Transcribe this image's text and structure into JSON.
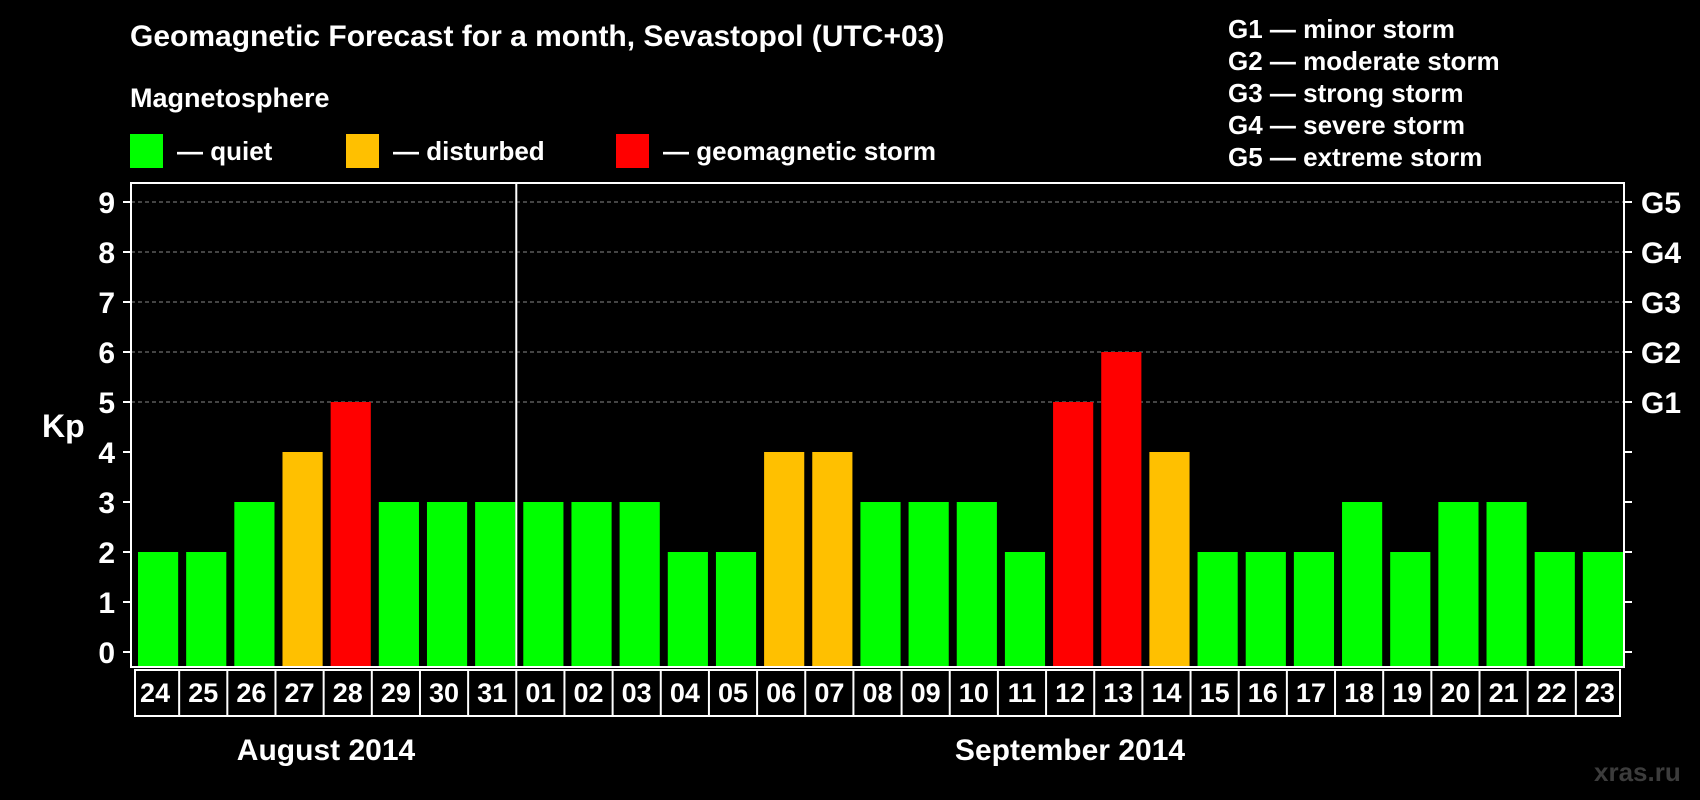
{
  "title": "Geomagnetic Forecast for a month, Sevastopol (UTC+03)",
  "subtitle": "Magnetosphere",
  "legend": [
    {
      "label": "— quiet",
      "color": "#00ff00"
    },
    {
      "label": "— disturbed",
      "color": "#ffc000"
    },
    {
      "label": "— geomagnetic storm",
      "color": "#ff0000"
    }
  ],
  "g_scale": [
    "G1 — minor storm",
    "G2 — moderate storm",
    "G3 — strong storm",
    "G4 — severe storm",
    "G5 — extreme storm"
  ],
  "ylabel": "Kp",
  "months": [
    "August 2014",
    "September 2014"
  ],
  "watermark": "xras.ru",
  "chart_data": {
    "type": "bar",
    "title": "Geomagnetic Forecast for a month, Sevastopol (UTC+03)",
    "ylabel": "Kp",
    "ylim": [
      0,
      9
    ],
    "yticks": [
      "0",
      "1",
      "2",
      "3",
      "4",
      "5",
      "6",
      "7",
      "8",
      "9"
    ],
    "right_ticks": [
      {
        "value": 5,
        "label": "G1"
      },
      {
        "value": 6,
        "label": "G2"
      },
      {
        "value": 7,
        "label": "G3"
      },
      {
        "value": 8,
        "label": "G4"
      },
      {
        "value": 9,
        "label": "G5"
      }
    ],
    "grid": "dashed horizontal at 5-9",
    "categories": [
      "24",
      "25",
      "26",
      "27",
      "28",
      "29",
      "30",
      "31",
      "01",
      "02",
      "03",
      "04",
      "05",
      "06",
      "07",
      "08",
      "09",
      "10",
      "11",
      "12",
      "13",
      "14",
      "15",
      "16",
      "17",
      "18",
      "19",
      "20",
      "21",
      "22",
      "23"
    ],
    "values": [
      2,
      2,
      3,
      4,
      5,
      3,
      3,
      3,
      3,
      3,
      3,
      2,
      2,
      4,
      4,
      3,
      3,
      3,
      2,
      5,
      6,
      4,
      2,
      2,
      2,
      3,
      2,
      3,
      3,
      2,
      2
    ],
    "colors": {
      "quiet": "#00ff00",
      "disturbed": "#ffc000",
      "storm": "#ff0000"
    },
    "month_split_after": "31"
  }
}
